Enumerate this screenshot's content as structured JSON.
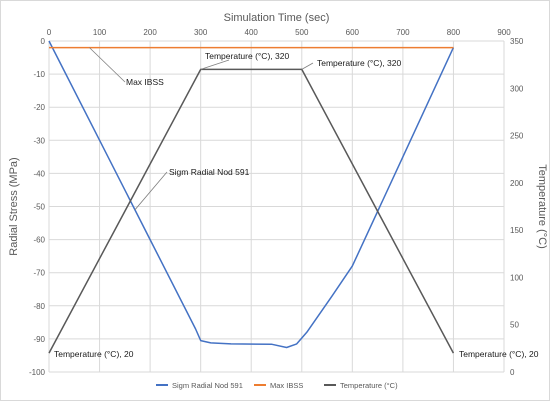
{
  "chart_data": {
    "type": "line",
    "top_axis": {
      "label": "Simulation Time (sec)",
      "range": [
        0,
        900
      ],
      "ticks": [
        0,
        100,
        200,
        300,
        400,
        500,
        600,
        700,
        800,
        900
      ]
    },
    "left_axis": {
      "label": "Radial Stress (MPa)",
      "range": [
        -100,
        0
      ],
      "ticks": [
        0,
        -10,
        -20,
        -30,
        -40,
        -50,
        -60,
        -70,
        -80,
        -90,
        -100
      ]
    },
    "right_axis": {
      "label": "Temperature (°C)",
      "range": [
        0,
        350
      ],
      "ticks": [
        0,
        50,
        100,
        150,
        200,
        250,
        300,
        350
      ]
    },
    "grid": true,
    "legend_position": "bottom",
    "series": [
      {
        "name": "Sigm Radial Nod 591",
        "axis": "left",
        "color": "#4472c4",
        "x": [
          0,
          100,
          200,
          290,
          300,
          320,
          360,
          440,
          470,
          490,
          510,
          560,
          600,
          700,
          800
        ],
        "y": [
          0,
          -30,
          -60,
          -87,
          -90.5,
          -91.2,
          -91.5,
          -91.6,
          -92.6,
          -91.5,
          -88,
          -77,
          -68,
          -35,
          -2
        ]
      },
      {
        "name": "Max IBSS",
        "axis": "left",
        "color": "#ed7d31",
        "x": [
          0,
          800
        ],
        "y": [
          -2,
          -2
        ]
      },
      {
        "name": "Temperature (°C)",
        "axis": "right",
        "color": "#595959",
        "x": [
          0,
          300,
          500,
          800
        ],
        "y": [
          20,
          320,
          320,
          20
        ]
      }
    ],
    "annotations": [
      {
        "text": "Max IBSS"
      },
      {
        "text": "Sigm Radial Nod 591"
      },
      {
        "text": "Temperature (°C), 320"
      },
      {
        "text": "Temperature (°C), 320"
      },
      {
        "text": "Temperature (°C), 20"
      },
      {
        "text": "Temperature (°C), 20"
      }
    ]
  }
}
